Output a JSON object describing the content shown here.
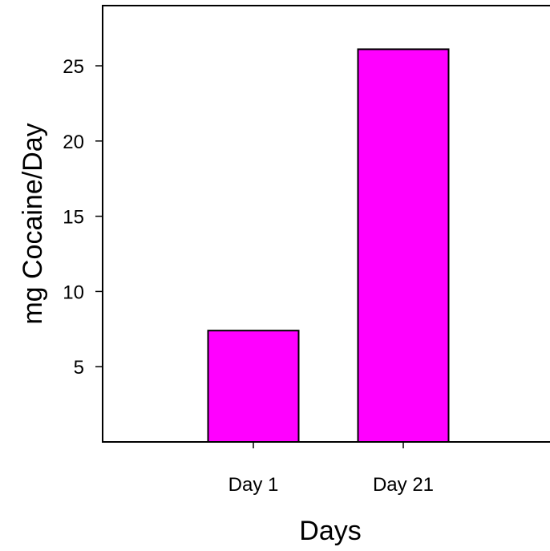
{
  "chart_data": {
    "type": "bar",
    "title": "",
    "categories": [
      "Day 1",
      "Day 21"
    ],
    "series": [
      {
        "values": [
          7.4,
          26.1
        ]
      }
    ],
    "xlabel": "Days",
    "ylabel": "mg Cocaine/Day",
    "yticks": [
      "5",
      "10",
      "15",
      "20",
      "25"
    ],
    "ylim": [
      0,
      29
    ],
    "grid": false,
    "legend": "none",
    "bar_color": "#ff00ff",
    "bar_edge_color": "#000000"
  }
}
